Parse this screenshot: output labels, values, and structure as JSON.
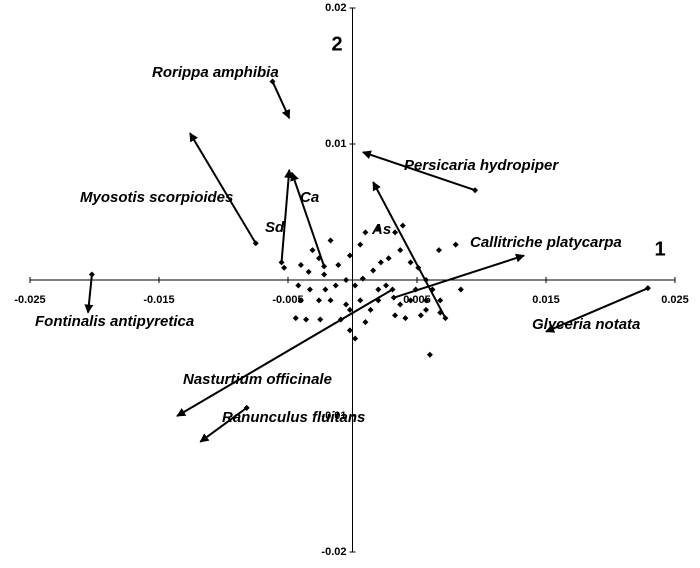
{
  "chart_data": {
    "type": "biplot",
    "xlim": [
      -0.025,
      0.025
    ],
    "ylim": [
      -0.02,
      0.02
    ],
    "xticks": [
      -0.025,
      -0.015,
      -0.005,
      0.005,
      0.015,
      0.025
    ],
    "yticks": [
      0.02,
      0.01,
      -0.01,
      -0.02
    ],
    "xlabel": "1",
    "ylabel": "2",
    "color": "#000000",
    "points": {
      "x": [
        -0.0053,
        -0.004,
        -0.0026,
        -0.0022,
        -0.0042,
        -0.0033,
        -0.0021,
        -0.0013,
        -0.0005,
        0.0002,
        0.0008,
        0.0016,
        0.0022,
        0.0028,
        0.0037,
        0.0045,
        0.0051,
        0.0057,
        0.0062,
        0.0068,
        0.0045,
        0.0037,
        0.0033,
        0.0041,
        0.0053,
        0.0057,
        0.002,
        0.001,
        0.0033,
        0.0039,
        0.0067,
        0.008,
        0.0084,
        0.006,
        -0.0002,
        -0.0009,
        -0.0025,
        -0.0036,
        -0.0044,
        -0.0017,
        -0.0005,
        0.0006,
        0.002,
        0.0026,
        0.001,
        0.0002,
        -0.0002,
        0.0014,
        -0.0011,
        -0.0002,
        0.0006,
        -0.0031,
        -0.0017,
        -0.0034,
        0.0049,
        0.0057,
        0.002,
        0.0068,
        -0.0026,
        -0.004
      ],
      "y": [
        0.0009,
        0.0011,
        0.0016,
        0.0004,
        -0.0004,
        -0.0007,
        -0.0007,
        -0.0004,
        0,
        -0.0004,
        0.0001,
        0.0007,
        0.0013,
        0.0016,
        0.0022,
        0.0013,
        0.0009,
        0,
        -0.0007,
        -0.0015,
        -0.0015,
        -0.0018,
        -0.0026,
        -0.0028,
        -0.0026,
        -0.0022,
        0.0038,
        0.0035,
        0.0035,
        0.004,
        0.0022,
        0.0026,
        -0.0007,
        -0.0055,
        -0.0037,
        -0.0029,
        -0.0029,
        -0.0029,
        -0.0028,
        -0.0015,
        -0.0018,
        -0.0015,
        -0.0015,
        -0.0004,
        -0.0031,
        -0.0043,
        -0.0022,
        -0.0022,
        0.0011,
        0.0018,
        0.0026,
        0.0022,
        0.0029,
        0.0006,
        -0.0007,
        -0.0015,
        -0.0007,
        -0.0024,
        -0.0015,
        -0.0015
      ]
    },
    "vectors": [
      {
        "name": "Rorippa amphibia",
        "x": [
          -0.0062,
          -0.0049
        ],
        "y": [
          0.0146,
          0.0119
        ]
      },
      {
        "name": "Myosotis scorpioides",
        "x": [
          -0.0075,
          -0.0126
        ],
        "y": [
          0.0027,
          0.0108
        ]
      },
      {
        "name": "Persicaria hydropiper",
        "x": [
          0.0095,
          0.0008
        ],
        "y": [
          0.0066,
          0.0094
        ]
      },
      {
        "name": "Callitriche platycarpa",
        "x": [
          0.0032,
          0.0133
        ],
        "y": [
          -0.0013,
          0.0018
        ]
      },
      {
        "name": "Glyceria notata",
        "x": [
          0.0229,
          0.015
        ],
        "y": [
          -0.0006,
          -0.0038
        ]
      },
      {
        "name": "Fontinalis antipyretica",
        "x": [
          -0.0202,
          -0.0205
        ],
        "y": [
          0.0004,
          -0.0024
        ]
      },
      {
        "name": "Nasturtium officinale",
        "x": [
          0.0031,
          -0.0136
        ],
        "y": [
          -0.0007,
          -0.01
        ]
      },
      {
        "name": "Ranunculus fluitans",
        "x": [
          -0.0082,
          -0.0118
        ],
        "y": [
          -0.0094,
          -0.0119
        ]
      },
      {
        "name": "Sd",
        "x": [
          -0.0055,
          -0.0049
        ],
        "y": [
          0.0013,
          0.0081
        ]
      },
      {
        "name": "Ca",
        "x": [
          -0.0022,
          -0.0047
        ],
        "y": [
          0.001,
          0.0079
        ]
      },
      {
        "name": "As",
        "x": [
          0.0072,
          0.0016
        ],
        "y": [
          -0.0028,
          0.0072
        ]
      }
    ]
  }
}
